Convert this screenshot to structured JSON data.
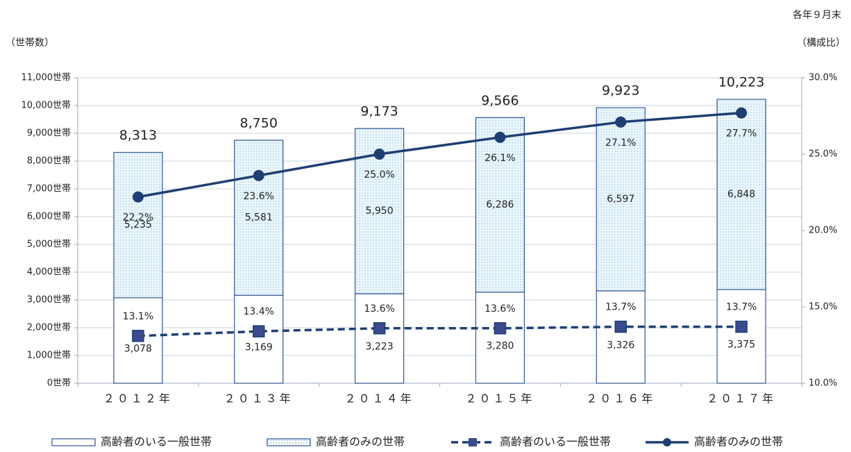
{
  "chart_data": {
    "type": "bar",
    "stacked": true,
    "note": "各年９月末",
    "y_label": "（世帯数）",
    "y2_label": "（構成比）",
    "categories": [
      "２０１２年",
      "２０１３年",
      "２０１４年",
      "２０１５年",
      "２０１６年",
      "２０１７年"
    ],
    "series": [
      {
        "name": "高齢者のいる一般世帯",
        "type": "bar",
        "color": "#ffffff",
        "values": [
          3078,
          3169,
          3223,
          3280,
          3326,
          3375
        ],
        "value_labels": [
          "3,078",
          "3,169",
          "3,223",
          "3,280",
          "3,326",
          "3,375"
        ]
      },
      {
        "name": "高齢者のみの世帯",
        "type": "bar",
        "color": "#d9edf8",
        "values": [
          5235,
          5581,
          5950,
          6286,
          6597,
          6848
        ],
        "value_labels": [
          "5,235",
          "5,581",
          "5,950",
          "6,286",
          "6,597",
          "6,848"
        ]
      },
      {
        "name": "高齢者のいる一般世帯",
        "type": "line",
        "axis": "y2",
        "dashed": true,
        "marker": "square",
        "color": "#1f3f73",
        "values": [
          13.1,
          13.4,
          13.6,
          13.6,
          13.7,
          13.7
        ],
        "value_labels": [
          "13.1%",
          "13.4%",
          "13.6%",
          "13.6%",
          "13.7%",
          "13.7%"
        ]
      },
      {
        "name": "高齢者のみの世帯",
        "type": "line",
        "axis": "y2",
        "dashed": false,
        "marker": "circle",
        "color": "#1f3f73",
        "values": [
          22.2,
          23.6,
          25.0,
          26.1,
          27.1,
          27.7
        ],
        "value_labels": [
          "22.2%",
          "23.6%",
          "25.0%",
          "26.1%",
          "27.1%",
          "27.7%"
        ]
      }
    ],
    "totals": [
      8313,
      8750,
      9173,
      9566,
      9923,
      10223
    ],
    "total_labels": [
      "8,313",
      "8,750",
      "9,173",
      "9,566",
      "9,923",
      "10,223"
    ],
    "ylim": [
      0,
      11000
    ],
    "yticks": [
      {
        "value": 0,
        "label": "0世帯"
      },
      {
        "value": 1000,
        "label": "1,000世帯"
      },
      {
        "value": 2000,
        "label": "2,000世帯"
      },
      {
        "value": 3000,
        "label": "3,000世帯"
      },
      {
        "value": 4000,
        "label": "4,000世帯"
      },
      {
        "value": 5000,
        "label": "5,000世帯"
      },
      {
        "value": 6000,
        "label": "6,000世帯"
      },
      {
        "value": 7000,
        "label": "7,000世帯"
      },
      {
        "value": 8000,
        "label": "8,000世帯"
      },
      {
        "value": 9000,
        "label": "9,000世帯"
      },
      {
        "value": 10000,
        "label": "10,000世帯"
      },
      {
        "value": 11000,
        "label": "11,000世帯"
      }
    ],
    "y2lim": [
      10,
      30
    ],
    "y2ticks": [
      {
        "value": 10,
        "label": "10.0%"
      },
      {
        "value": 15,
        "label": "15.0%"
      },
      {
        "value": 20,
        "label": "20.0%"
      },
      {
        "value": 25,
        "label": "25.0%"
      },
      {
        "value": 30,
        "label": "30.0%"
      }
    ],
    "grid": true,
    "legend": "bottom"
  }
}
